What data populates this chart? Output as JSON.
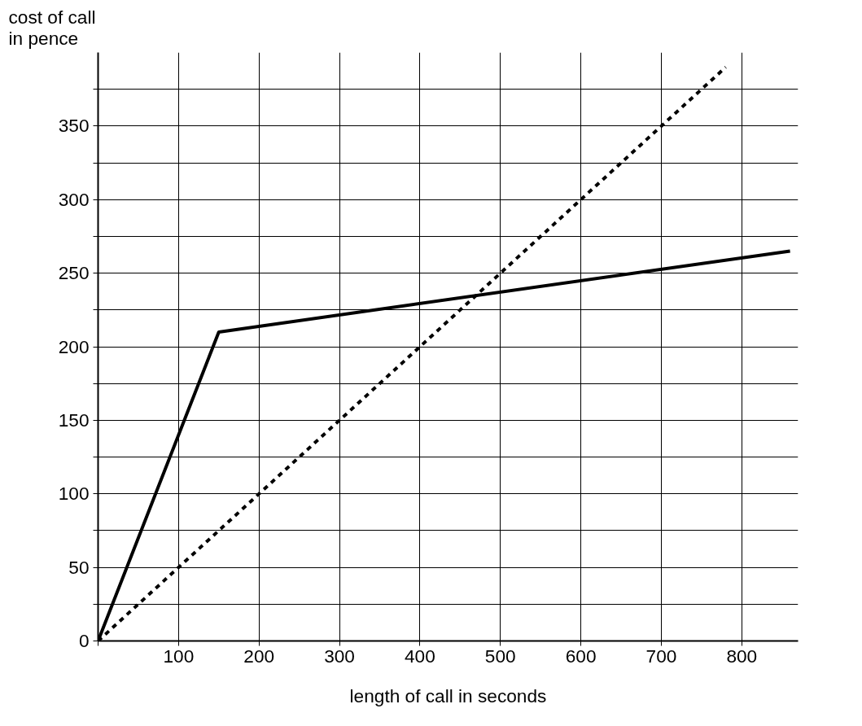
{
  "chart_data": {
    "type": "line",
    "xlabel": "length of call in seconds",
    "ylabel": "cost of call\nin pence",
    "xlim": [
      0,
      870
    ],
    "ylim": [
      0,
      400
    ],
    "xticks": [
      {
        "value": 0,
        "label": null
      },
      100,
      200,
      300,
      400,
      500,
      600,
      700,
      800
    ],
    "yticks": [
      0,
      {
        "value": 25,
        "label": null
      },
      50,
      {
        "value": 75,
        "label": null
      },
      100,
      {
        "value": 125,
        "label": null
      },
      150,
      {
        "value": 175,
        "label": null
      },
      200,
      {
        "value": 225,
        "label": null
      },
      250,
      {
        "value": 275,
        "label": null
      },
      300,
      {
        "value": 325,
        "label": null
      },
      350,
      {
        "value": 375,
        "label": null
      }
    ],
    "grid": true,
    "marker": "none",
    "series": [
      {
        "color": "#000000",
        "line_style": "solid",
        "x": [
          0,
          150,
          860
        ],
        "values": [
          0,
          210,
          265
        ]
      },
      {
        "color": "#000000",
        "line_style": "dashed",
        "x": [
          0,
          780
        ],
        "values": [
          0,
          390
        ]
      }
    ]
  }
}
